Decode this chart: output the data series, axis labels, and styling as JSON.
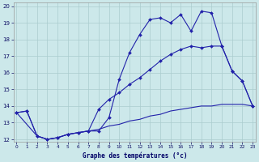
{
  "xlabel": "Graphe des températures (°c)",
  "bg_color": "#cce8ea",
  "grid_color": "#aaccce",
  "line_color": "#2222aa",
  "xmin": 0,
  "xmax": 23,
  "ymin": 12,
  "ymax": 20,
  "yticks": [
    12,
    13,
    14,
    15,
    16,
    17,
    18,
    19,
    20
  ],
  "xticks": [
    0,
    1,
    2,
    3,
    4,
    5,
    6,
    7,
    8,
    9,
    10,
    11,
    12,
    13,
    14,
    15,
    16,
    17,
    18,
    19,
    20,
    21,
    22,
    23
  ],
  "series1_x": [
    0,
    1,
    2,
    3,
    4,
    5,
    6,
    7,
    8,
    9,
    10,
    11,
    12,
    13,
    14,
    15,
    16,
    17,
    18,
    19,
    20,
    21,
    22,
    23
  ],
  "series1_y": [
    13.6,
    13.7,
    12.2,
    12.0,
    12.1,
    12.3,
    12.4,
    12.5,
    12.5,
    13.3,
    15.6,
    17.2,
    18.3,
    19.2,
    19.3,
    19.0,
    19.5,
    18.5,
    19.7,
    19.6,
    17.6,
    16.1,
    15.5,
    14.0
  ],
  "series2_x": [
    0,
    1,
    2,
    3,
    4,
    5,
    6,
    7,
    8,
    9,
    10,
    11,
    12,
    13,
    14,
    15,
    16,
    17,
    18,
    19,
    20,
    21,
    22,
    23
  ],
  "series2_y": [
    13.6,
    13.7,
    12.2,
    12.0,
    12.1,
    12.3,
    12.4,
    12.5,
    13.8,
    14.4,
    14.8,
    15.3,
    15.7,
    16.2,
    16.7,
    17.1,
    17.4,
    17.6,
    17.5,
    17.6,
    17.6,
    16.1,
    15.5,
    14.0
  ],
  "series3_x": [
    0,
    2,
    3,
    4,
    5,
    6,
    7,
    8,
    9,
    10,
    11,
    12,
    13,
    14,
    15,
    16,
    17,
    18,
    19,
    20,
    21,
    22,
    23
  ],
  "series3_y": [
    13.6,
    12.2,
    12.0,
    12.1,
    12.3,
    12.4,
    12.5,
    12.6,
    12.8,
    12.9,
    13.1,
    13.2,
    13.4,
    13.5,
    13.7,
    13.8,
    13.9,
    14.0,
    14.0,
    14.1,
    14.1,
    14.1,
    14.0
  ]
}
